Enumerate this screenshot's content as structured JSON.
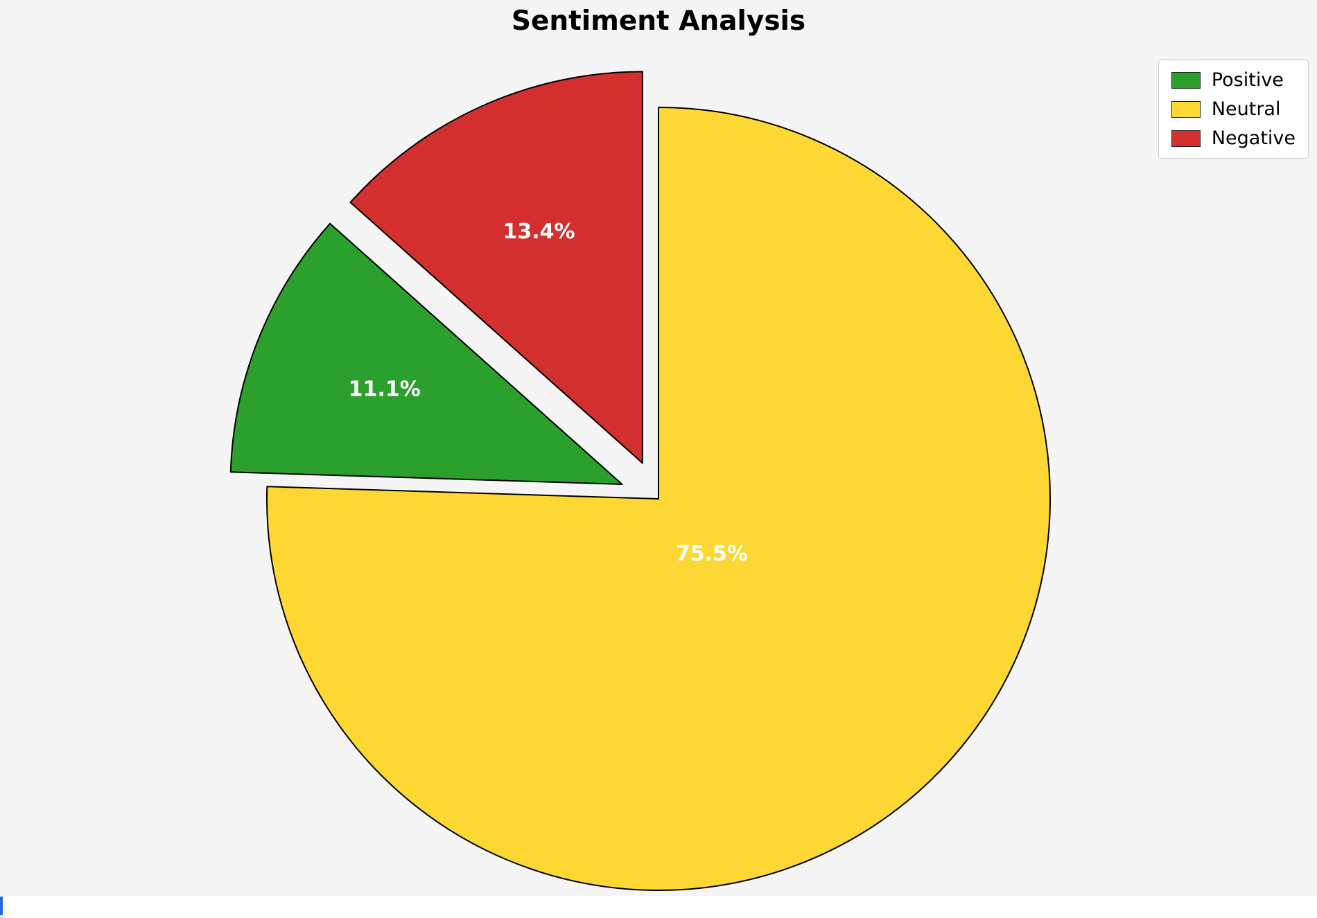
{
  "page": {
    "background": "#f5f5f5"
  },
  "chart_data": {
    "type": "pie",
    "title": "Sentiment Analysis",
    "categories": [
      "Positive",
      "Neutral",
      "Negative"
    ],
    "values": [
      11.1,
      75.5,
      13.4
    ],
    "slices_draw_order": [
      {
        "label": "Neutral",
        "value": 75.5,
        "pct_label": "75.5%",
        "color": "#fdd835",
        "explode": 0
      },
      {
        "label": "Positive",
        "value": 11.1,
        "pct_label": "11.1%",
        "color": "#2ca02c",
        "explode": 0.1
      },
      {
        "label": "Negative",
        "value": 13.4,
        "pct_label": "13.4%",
        "color": "#d32f2f",
        "explode": 0.1
      }
    ],
    "start_angle_deg": 90,
    "direction": "clockwise",
    "wedge_edge_color": "#000000",
    "wedge_edge_width": 2,
    "pct_label_color": "#ffffff",
    "legend": {
      "position": "upper-right",
      "entries": [
        {
          "label": "Positive",
          "color": "#2ca02c"
        },
        {
          "label": "Neutral",
          "color": "#fdd835"
        },
        {
          "label": "Negative",
          "color": "#d32f2f"
        }
      ]
    },
    "background": "#f5f5f5"
  },
  "artifacts": {
    "bottom_bar_color": "#ffffff",
    "caret_color": "#2468e5"
  }
}
